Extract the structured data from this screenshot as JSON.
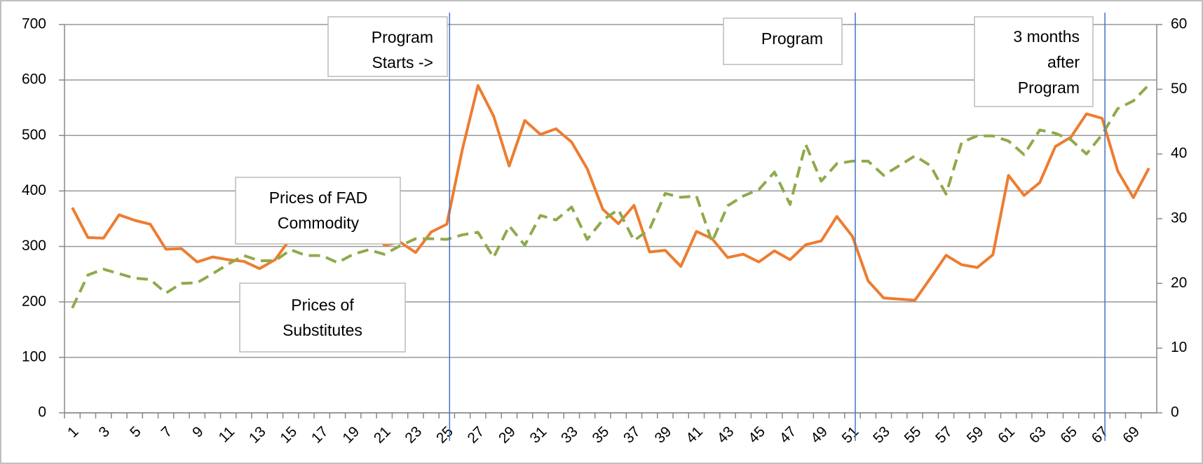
{
  "chart_data": {
    "type": "line",
    "categories": [
      1,
      null,
      3,
      null,
      5,
      null,
      7,
      null,
      9,
      null,
      11,
      null,
      13,
      null,
      15,
      null,
      17,
      null,
      19,
      null,
      21,
      null,
      23,
      null,
      25,
      null,
      27,
      null,
      29,
      null,
      31,
      null,
      33,
      null,
      35,
      null,
      37,
      null,
      39,
      null,
      41,
      null,
      43,
      null,
      45,
      null,
      47,
      null,
      49,
      null,
      51,
      null,
      53,
      null,
      55,
      null,
      57,
      null,
      59,
      null,
      61,
      null,
      63,
      null,
      65,
      null,
      67,
      null,
      69,
      null
    ],
    "series": [
      {
        "color": "#ED7D31",
        "axis": "y",
        "values": [
          370,
          316,
          315,
          357,
          347,
          340,
          295,
          296,
          272,
          281,
          276,
          273,
          260,
          276,
          315,
          308,
          330,
          316,
          325,
          357,
          302,
          308,
          289,
          326,
          340,
          475,
          590,
          535,
          445,
          527,
          502,
          512,
          488,
          440,
          367,
          341,
          374,
          290,
          293,
          264,
          327,
          314,
          280,
          286,
          272,
          292,
          276,
          303,
          310,
          354,
          318,
          238,
          207,
          205,
          203,
          243,
          284,
          267,
          262,
          285,
          428,
          392,
          415,
          480,
          497,
          539,
          531,
          436,
          388,
          441
        ]
      },
      {
        "color": "#8FAA4B",
        "axis": "y2",
        "dashed": true,
        "values": [
          16.2,
          21.3,
          22.2,
          21.5,
          20.8,
          20.6,
          18.5,
          20.0,
          20.1,
          21.5,
          23.0,
          24.3,
          23.5,
          23.5,
          25.2,
          24.3,
          24.3,
          23.2,
          24.5,
          25.2,
          24.5,
          25.8,
          26.9,
          26.9,
          26.8,
          27.5,
          27.9,
          24.0,
          28.9,
          25.9,
          30.5,
          29.8,
          31.8,
          26.8,
          29.8,
          31.4,
          26.6,
          28.4,
          33.9,
          33.3,
          33.5,
          26.4,
          32.0,
          33.5,
          34.5,
          37.2,
          32.2,
          41.5,
          35.8,
          38.5,
          38.9,
          38.9,
          36.7,
          38.2,
          39.7,
          38.2,
          33.8,
          41.8,
          42.8,
          42.8,
          42.0,
          39.9,
          43.7,
          43.2,
          42.2,
          40.0,
          43.0,
          47.0,
          48.2,
          50.7
        ]
      }
    ],
    "ylim": [
      0,
      700
    ],
    "yticks": [
      0,
      100,
      200,
      300,
      400,
      500,
      600,
      700
    ],
    "y2lim": [
      0,
      60
    ],
    "y2ticks": [
      0,
      10,
      20,
      30,
      40,
      50,
      60
    ],
    "grid": true,
    "vlines": {
      "color": "#4472C4",
      "x": [
        25,
        51,
        67
      ]
    },
    "annotations": [
      {
        "lines": [
          "Program",
          "Starts ->"
        ]
      },
      {
        "lines": [
          "Program"
        ]
      },
      {
        "lines": [
          "3 months",
          "after",
          "Program"
        ]
      },
      {
        "lines": [
          "Prices of FAD",
          "Commodity"
        ]
      },
      {
        "lines": [
          "Prices of",
          "Substitutes"
        ]
      }
    ]
  }
}
